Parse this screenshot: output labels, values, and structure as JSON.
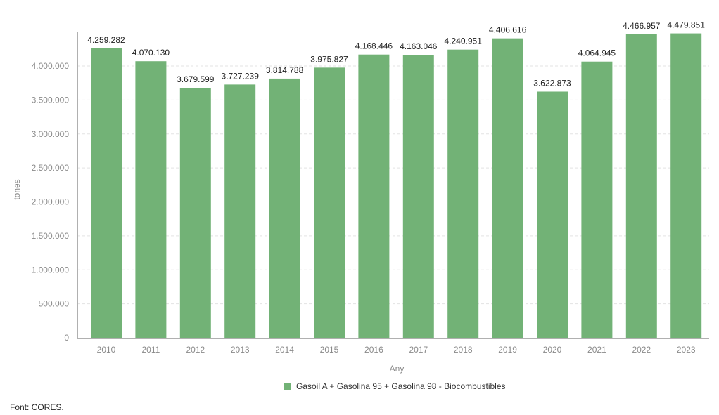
{
  "chart_data": {
    "type": "bar",
    "categories": [
      "2010",
      "2011",
      "2012",
      "2013",
      "2014",
      "2015",
      "2016",
      "2017",
      "2018",
      "2019",
      "2020",
      "2021",
      "2022",
      "2023"
    ],
    "series": [
      {
        "name": "Gasoil A + Gasolina 95 + Gasolina 98 - Biocombustibles",
        "values": [
          4259282,
          4070130,
          3679599,
          3727239,
          3814788,
          3975827,
          4168446,
          4163046,
          4240951,
          4406616,
          3622873,
          4064945,
          4466957,
          4479851
        ],
        "labels": [
          "4.259.282",
          "4.070.130",
          "3.679.599",
          "3.727.239",
          "3.814.788",
          "3.975.827",
          "4.168.446",
          "4.163.046",
          "4.240.951",
          "4.406.616",
          "3.622.873",
          "4.064.945",
          "4.466.957",
          "4.479.851"
        ],
        "color": "#72b276"
      }
    ],
    "xlabel": "Any",
    "ylabel": "tones",
    "ylim": [
      0,
      4500000
    ],
    "yticks": [
      0,
      500000,
      1000000,
      1500000,
      2000000,
      2500000,
      3000000,
      3500000,
      4000000
    ],
    "ytick_labels": [
      "0",
      "500.000",
      "1.000.000",
      "1.500.000",
      "2.000.000",
      "2.500.000",
      "3.000.000",
      "3.500.000",
      "4.000.000"
    ],
    "grid": true,
    "legend_placement": "bottom"
  },
  "source": "Font: CORES."
}
